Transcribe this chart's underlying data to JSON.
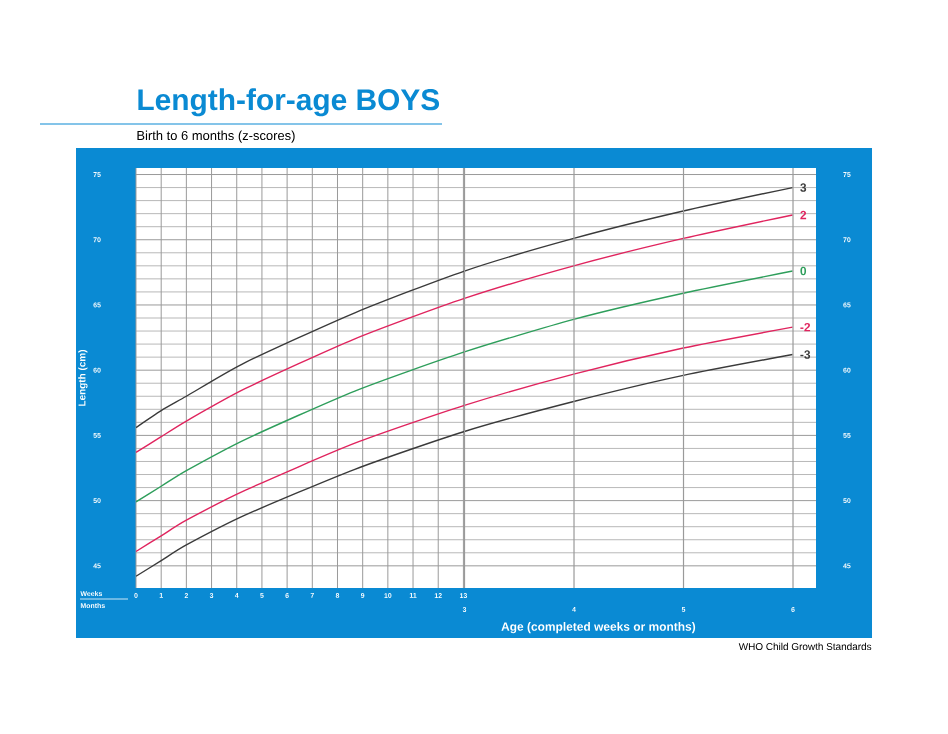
{
  "chart_data": {
    "type": "line",
    "title": "Length-for-age BOYS",
    "subtitle": "Birth to 6 months (z-scores)",
    "xlabel": "Age (completed weeks or months)",
    "ylabel": "Length (cm)",
    "annotations": [
      "Weeks",
      "Months",
      "WHO Child Growth Standards"
    ],
    "x": [
      0,
      1,
      2,
      4.35,
      8.69,
      13.04,
      17.38,
      21.73,
      26.07
    ],
    "series": [
      {
        "name": "3",
        "color": "#3a3a3a",
        "values": [
          55.6,
          56.9,
          58.0,
          60.6,
          64.4,
          67.6,
          70.1,
          72.2,
          74.0
        ]
      },
      {
        "name": "2",
        "color": "#e0245e",
        "values": [
          53.7,
          54.9,
          56.1,
          58.6,
          62.4,
          65.5,
          68.0,
          70.1,
          71.9
        ]
      },
      {
        "name": "0",
        "color": "#2e9e5b",
        "values": [
          49.9,
          51.1,
          52.3,
          54.7,
          58.4,
          61.4,
          63.9,
          65.9,
          67.6
        ]
      },
      {
        "name": "-2",
        "color": "#e0245e",
        "values": [
          46.1,
          47.3,
          48.5,
          50.8,
          54.4,
          57.3,
          59.7,
          61.7,
          63.3
        ]
      },
      {
        "name": "-3",
        "color": "#3a3a3a",
        "values": [
          44.2,
          45.4,
          46.6,
          48.9,
          52.4,
          55.3,
          57.6,
          59.6,
          61.2
        ]
      }
    ],
    "xlim": [
      0,
      27
    ],
    "xticks": [
      0,
      1,
      2,
      3,
      4,
      5,
      6,
      7,
      8,
      9,
      10,
      11,
      12,
      13
    ],
    "x2lim": [
      0,
      6.21
    ],
    "x2ticks": [
      3,
      4,
      5,
      6
    ],
    "ylim": [
      43.3,
      75.5
    ],
    "yticks": [
      45,
      50,
      55,
      60,
      65,
      70,
      75
    ],
    "y2lim": [
      43.3,
      75.5
    ],
    "y2ticks": [
      45,
      50,
      55,
      60,
      65,
      70,
      75
    ],
    "grid": true,
    "line_style": "solid"
  }
}
